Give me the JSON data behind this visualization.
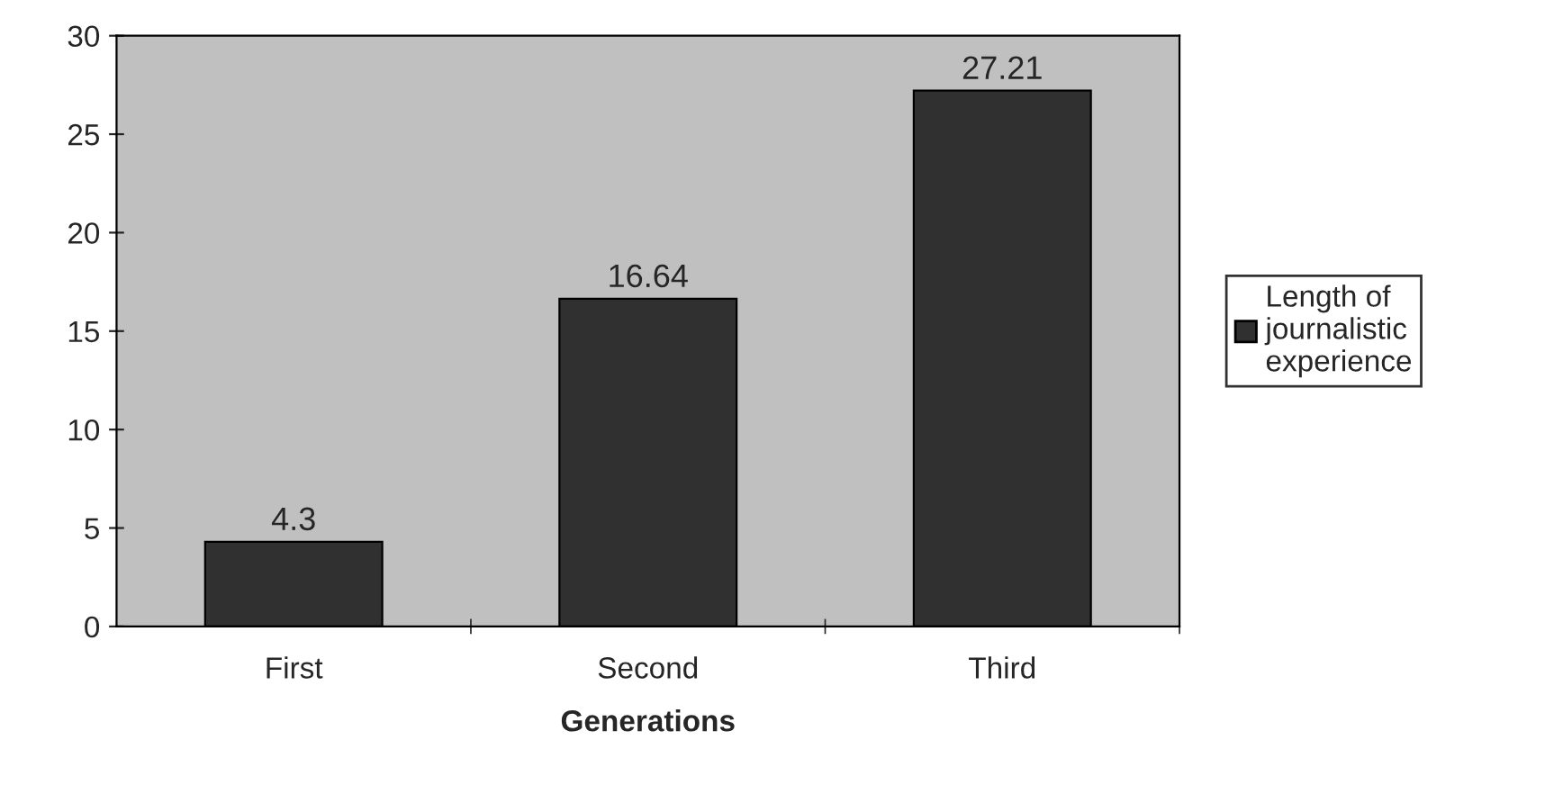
{
  "chart_data": {
    "type": "bar",
    "xlabel": "Generations",
    "categories": [
      "First",
      "Second",
      "Third"
    ],
    "series": [
      {
        "name": "Length of journalistic experience",
        "color": "#303030",
        "values": [
          4.3,
          16.64,
          27.21
        ]
      }
    ],
    "ylim": [
      0,
      30
    ],
    "yticks": [
      0,
      5,
      10,
      15,
      20,
      25,
      30
    ],
    "data_labels": true,
    "grid": false,
    "legend": "right"
  }
}
